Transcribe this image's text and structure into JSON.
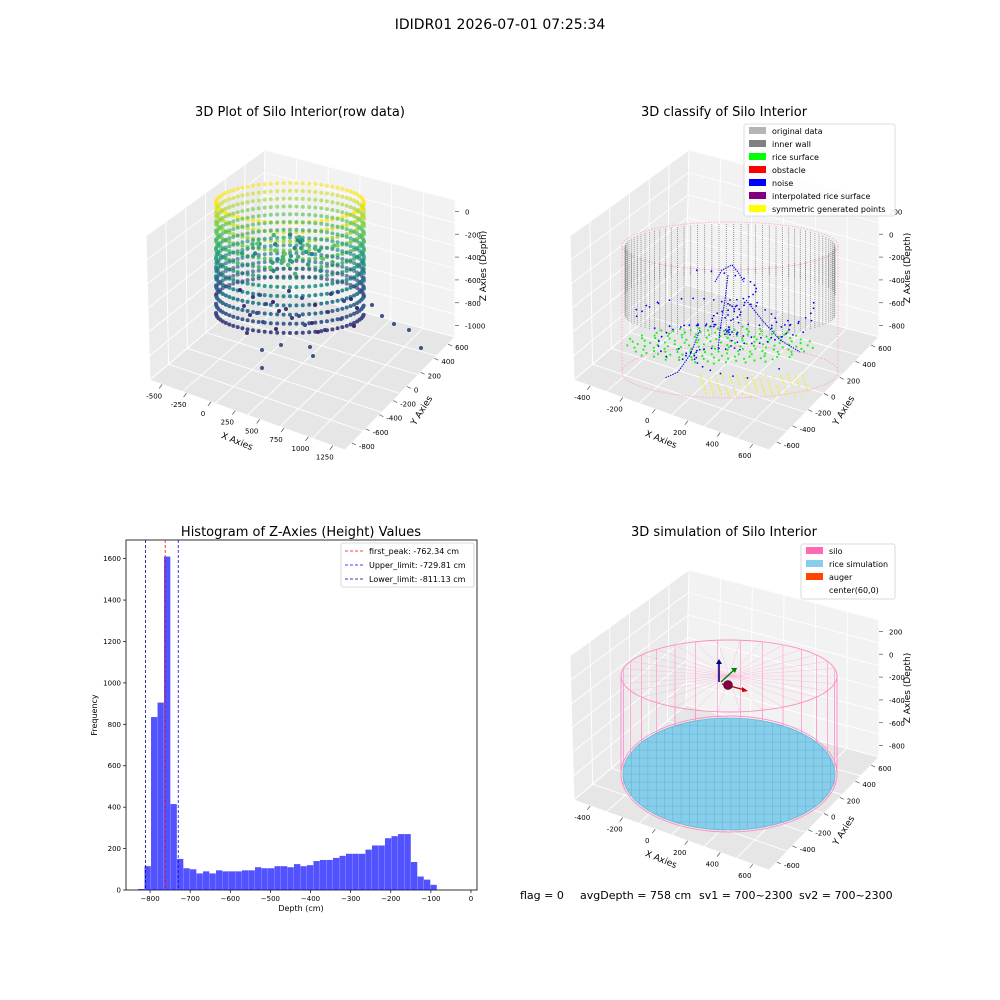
{
  "figure_title": "IDIDR01 2026-07-01 07:25:34",
  "footer": {
    "flag": "flag = 0",
    "avg_depth": "avgDepth = 758 cm",
    "sv1": "sv1 = 700~2300",
    "sv2": "sv2 = 700~2300"
  },
  "chart_data": [
    {
      "type": "scatter3d",
      "title": "3D Plot of Silo Interior(row data)",
      "xlabel": "X Axies",
      "ylabel": "Y Axies",
      "zlabel": "Z Axies (Depth)",
      "x_ticks": [
        "-500",
        "-250",
        "0",
        "250",
        "500",
        "750",
        "1000",
        "1250"
      ],
      "y_ticks": [
        "-800",
        "-600",
        "-400",
        "-200",
        "0",
        "200",
        "400",
        "600"
      ],
      "z_ticks": [
        "0",
        "-200",
        "-400",
        "-600",
        "-800",
        "-1000"
      ],
      "colormap": "viridis",
      "grid": true
    },
    {
      "type": "scatter3d",
      "title": "3D classify of Silo Interior",
      "xlabel": "X Axies",
      "ylabel": "Y Axies",
      "zlabel": "Z Axies (Depth)",
      "x_ticks": [
        "-400",
        "-200",
        "0",
        "200",
        "400",
        "600"
      ],
      "y_ticks": [
        "-600",
        "-400",
        "-200",
        "0",
        "200",
        "400",
        "600"
      ],
      "z_ticks": [
        "200",
        "0",
        "-200",
        "-400",
        "-600",
        "-800"
      ],
      "legend_position": "top-right",
      "legend": [
        {
          "label": "original data",
          "color": "#b5b5b5"
        },
        {
          "label": "inner wall",
          "color": "#808080"
        },
        {
          "label": "rice surface",
          "color": "#00ff00"
        },
        {
          "label": "obstacle",
          "color": "#ff0000"
        },
        {
          "label": "noise",
          "color": "#0000ff"
        },
        {
          "label": "interpolated rice surface",
          "color": "#800080"
        },
        {
          "label": "symmetric generated points",
          "color": "#ffff00"
        }
      ],
      "grid": true
    },
    {
      "type": "bar",
      "title": "Histogram of Z-Axies (Height) Values",
      "xlabel": "Depth (cm)",
      "ylabel": "Frequency",
      "xlim": [
        -860,
        15
      ],
      "ylim": [
        0,
        1690
      ],
      "x_ticks": [
        -800,
        -700,
        -600,
        -500,
        -400,
        -300,
        -200,
        -100,
        0
      ],
      "y_ticks": [
        0,
        200,
        400,
        600,
        800,
        1000,
        1200,
        1400,
        1600
      ],
      "bar_color": "#0000ff",
      "bin_width": 16.2,
      "bin_start": -830,
      "values": [
        5,
        115,
        835,
        905,
        1610,
        415,
        150,
        105,
        100,
        80,
        90,
        80,
        95,
        90,
        90,
        90,
        95,
        95,
        110,
        105,
        105,
        115,
        115,
        110,
        125,
        115,
        120,
        140,
        145,
        145,
        155,
        165,
        175,
        175,
        175,
        195,
        215,
        215,
        250,
        260,
        270,
        270,
        135,
        65,
        50,
        25
      ],
      "vlines": [
        {
          "label": "first_peak: -762.34 cm",
          "x": -762.34,
          "color": "#ff0000"
        },
        {
          "label": "Upper_limit: -729.81 cm",
          "x": -729.81,
          "color": "#0000ff"
        },
        {
          "label": "Lower_limit: -811.13 cm",
          "x": -811.13,
          "color": "#000080"
        }
      ],
      "legend_position": "top-right"
    },
    {
      "type": "surface3d",
      "title": "3D simulation of Silo Interior",
      "xlabel": "X Axies",
      "ylabel": "Y Axies",
      "zlabel": "Z Axies (Depth)",
      "x_ticks": [
        "-400",
        "-200",
        "0",
        "200",
        "400",
        "600"
      ],
      "y_ticks": [
        "-600",
        "-400",
        "-200",
        "0",
        "200",
        "400",
        "600"
      ],
      "z_ticks": [
        "200",
        "0",
        "-200",
        "-400",
        "-600",
        "-800"
      ],
      "legend_position": "top-right",
      "legend": [
        {
          "label": "silo",
          "color": "#ff69b4"
        },
        {
          "label": "rice simulation",
          "color": "#87ceeb"
        },
        {
          "label": "auger",
          "color": "#ff4500"
        },
        {
          "label": "center(60,0)",
          "color": "#ffffff"
        }
      ],
      "grid": true
    }
  ]
}
